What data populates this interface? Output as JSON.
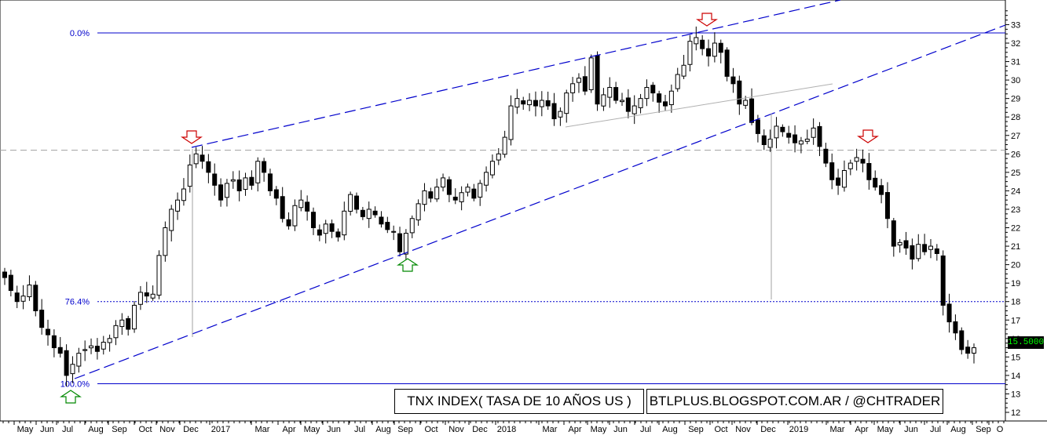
{
  "chart_data": {
    "type": "candlestick",
    "ylim": [
      12,
      33.5
    ],
    "y_ticks": [
      "12",
      "13",
      "14",
      "15",
      "16",
      "17",
      "18",
      "19",
      "20",
      "21",
      "22",
      "23",
      "24",
      "25",
      "26",
      "27",
      "28",
      "29",
      "30",
      "31",
      "32",
      "33"
    ],
    "x_tick_labels": [
      "May",
      "Jun",
      "Jul",
      "Aug",
      "Sep",
      "Oct",
      "Nov",
      "Dec",
      "2017",
      "Mar",
      "Apr",
      "May",
      "Jun",
      "Jul",
      "Aug",
      "Sep",
      "Oct",
      "Nov",
      "Dec",
      "2018",
      "Mar",
      "Apr",
      "May",
      "Jun",
      "Jul",
      "Aug",
      "Sep",
      "Oct",
      "Nov",
      "Dec",
      "2019",
      "Mar",
      "Apr",
      "May",
      "Jun",
      "Jul",
      "Aug",
      "Sep",
      "O"
    ],
    "last_price": "15.5000",
    "fib_levels": [
      {
        "label": "0.0%",
        "value": 32.55
      },
      {
        "label": "76.4%",
        "value": 18.0
      },
      {
        "label": "100.0%",
        "value": 13.55
      }
    ],
    "resistance_level": 26.2,
    "weekly_closes": [
      19.3,
      18.6,
      18.0,
      18.3,
      18.9,
      17.5,
      16.6,
      16.2,
      15.5,
      15.2,
      14.0,
      14.6,
      15.2,
      15.4,
      15.6,
      15.3,
      15.8,
      16.0,
      16.7,
      17.0,
      16.5,
      17.8,
      18.5,
      18.3,
      18.4,
      20.5,
      22.0,
      23.0,
      23.5,
      24.1,
      25.4,
      26.0,
      25.6,
      25.0,
      24.3,
      23.5,
      24.4,
      24.6,
      24.0,
      24.7,
      24.3,
      25.6,
      25.0,
      24.0,
      23.6,
      22.5,
      22.1,
      23.2,
      23.5,
      22.9,
      22.0,
      21.6,
      22.2,
      21.8,
      21.5,
      22.9,
      23.8,
      23.0,
      22.6,
      23.0,
      22.7,
      22.2,
      21.9,
      21.8,
      20.7,
      21.7,
      22.5,
      23.3,
      24.0,
      23.6,
      24.2,
      24.7,
      23.8,
      23.5,
      23.9,
      24.2,
      23.6,
      24.4,
      25.0,
      25.6,
      26.0,
      26.9,
      28.6,
      29.0,
      28.7,
      28.9,
      28.6,
      28.9,
      28.6,
      27.9,
      28.3,
      29.3,
      29.8,
      30.1,
      29.4,
      31.2,
      28.7,
      29.2,
      29.6,
      28.9,
      28.9,
      28.3,
      28.6,
      29.0,
      29.6,
      29.3,
      28.8,
      28.6,
      29.4,
      30.3,
      30.8,
      32.1,
      32.3,
      31.7,
      31.3,
      32.0,
      31.5,
      30.2,
      29.8,
      28.7,
      28.9,
      27.7,
      27.1,
      26.5,
      26.8,
      27.5,
      27.2,
      26.9,
      26.6,
      26.7,
      26.8,
      27.4,
      26.4,
      25.5,
      24.6,
      24.3,
      25.1,
      25.5,
      25.8,
      25.5,
      24.6,
      24.2,
      23.8,
      22.5,
      21.0,
      21.2,
      20.9,
      20.3,
      21.1,
      20.7,
      21.0,
      20.6,
      17.8,
      16.9,
      16.3,
      15.4,
      15.2,
      15.5
    ],
    "annotations": [
      "down-arrow",
      "down-arrow",
      "down-arrow",
      "up-arrow",
      "up-arrow"
    ]
  },
  "title_box": "TNX INDEX( TASA DE 10 AÑOS US )",
  "source_box": "BTLPLUS.BLOGSPOT.COM.AR / @CHTRADER",
  "colors": {
    "up": "#ffffff",
    "down": "#000000",
    "fib": "#0000cc",
    "trend": "#0000cc",
    "resistance": "#a0a0a0",
    "arrow_red": "#cc0000",
    "arrow_green": "#008800",
    "price_text": "#00ff00"
  }
}
